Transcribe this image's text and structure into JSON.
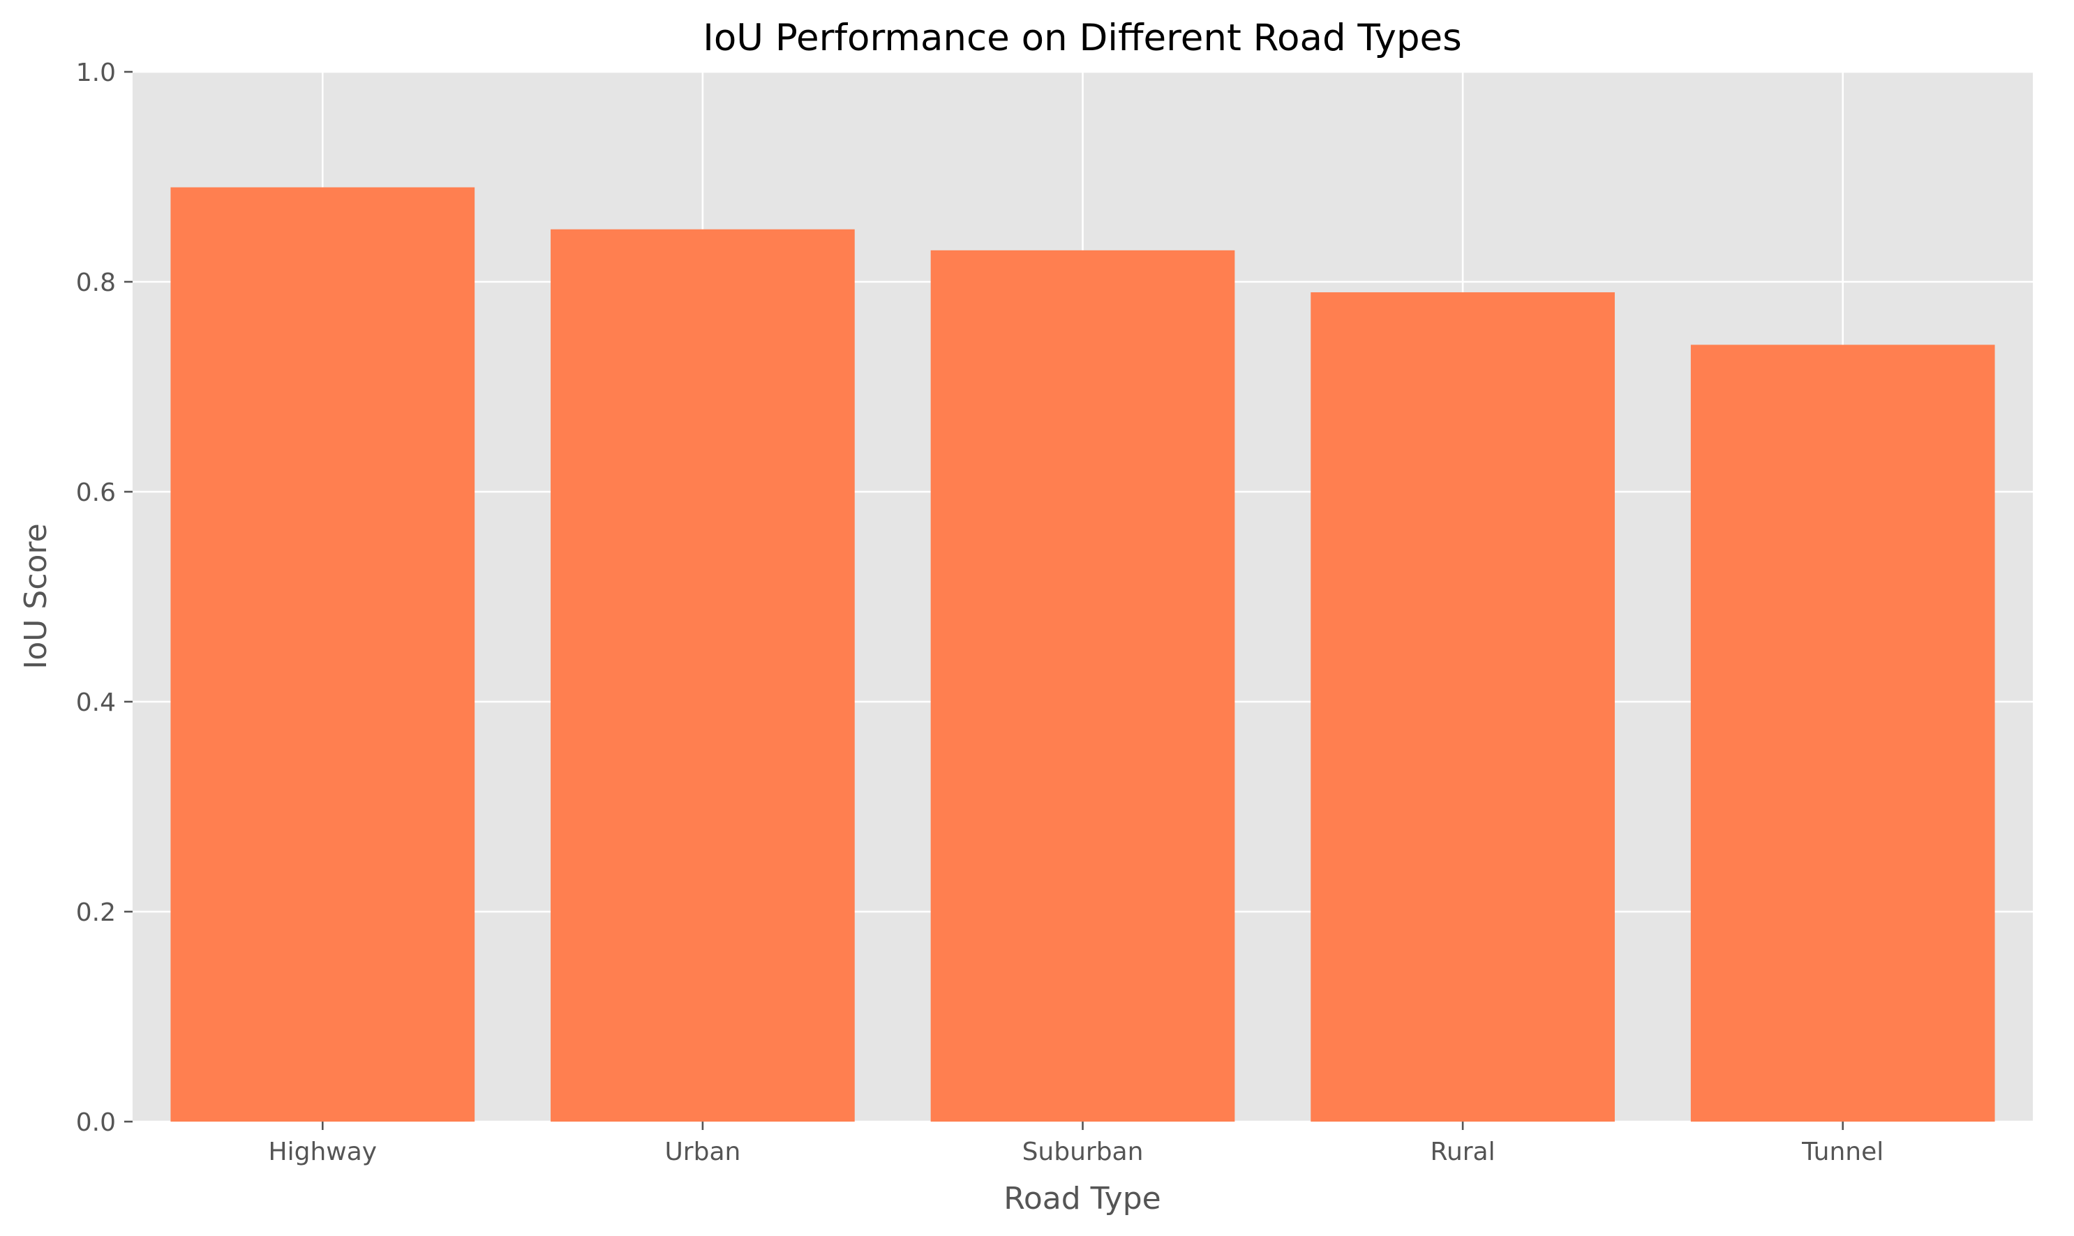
{
  "chart_data": {
    "type": "bar",
    "title": "IoU Performance on Different Road Types",
    "xlabel": "Road Type",
    "ylabel": "IoU Score",
    "categories": [
      "Highway",
      "Urban",
      "Suburban",
      "Rural",
      "Tunnel"
    ],
    "values": [
      0.89,
      0.85,
      0.83,
      0.79,
      0.74
    ],
    "ylim": [
      0,
      1.0
    ],
    "yticks": [
      0.0,
      0.2,
      0.4,
      0.6,
      0.8,
      1.0
    ],
    "ytick_labels": [
      "0.0",
      "0.2",
      "0.4",
      "0.6",
      "0.8",
      "1.0"
    ],
    "grid": true,
    "legend": "none"
  },
  "colors": {
    "bar": "#ff7f50",
    "plot_background": "#e5e5e5",
    "grid": "#ffffff",
    "text": "#555555",
    "title": "#000000"
  }
}
